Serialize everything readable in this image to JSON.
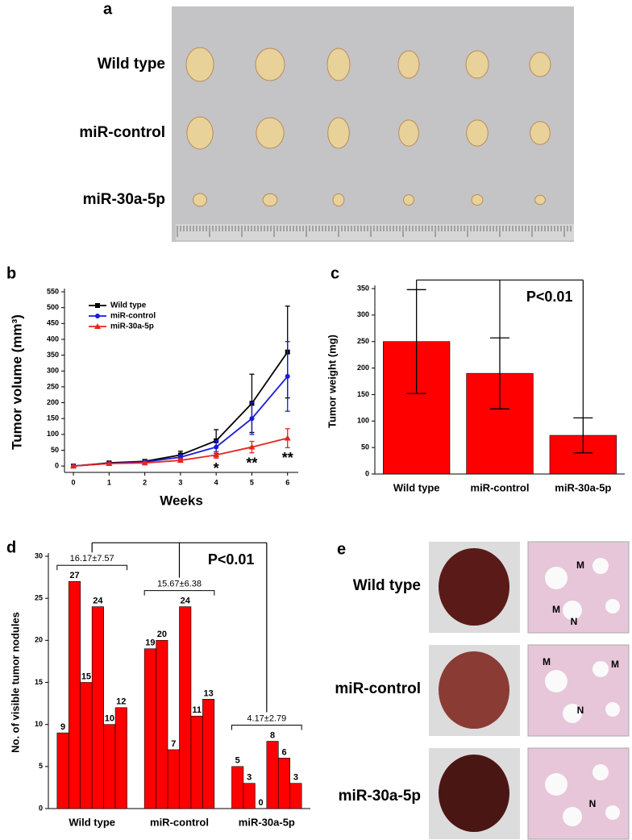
{
  "panel_a": {
    "letter": "a",
    "rows": [
      "Wild type",
      "miR-control",
      "miR-30a-5p"
    ]
  },
  "panel_e": {
    "letter": "e",
    "rows": [
      {
        "label": "Wild type",
        "marks": [
          "M",
          "M",
          "N"
        ]
      },
      {
        "label": "miR-control",
        "marks": [
          "M",
          "M",
          "N"
        ]
      },
      {
        "label": "miR-30a-5p",
        "marks": [
          "N"
        ]
      }
    ]
  },
  "chart_data": [
    {
      "type": "line",
      "letter": "b",
      "x_label": "Weeks",
      "y_label": "Tumor volume (mm³)",
      "x": [
        0,
        1,
        2,
        3,
        4,
        5,
        6
      ],
      "xlim": [
        -0.25,
        6.3
      ],
      "xticks": [
        0,
        1,
        2,
        3,
        4,
        5,
        6
      ],
      "ylim": [
        -20,
        550
      ],
      "yticks": [
        0,
        50,
        100,
        150,
        200,
        250,
        300,
        350,
        400,
        450,
        500,
        550
      ],
      "legend": "upper left",
      "series": [
        {
          "name": "Wild type",
          "color": "#000000",
          "marker": "square",
          "values": [
            0,
            10,
            15,
            35,
            80,
            198,
            360
          ],
          "errors": [
            2,
            3,
            4,
            12,
            35,
            92,
            145
          ]
        },
        {
          "name": "miR-control",
          "color": "#1a1adc",
          "marker": "circle",
          "values": [
            0,
            8,
            13,
            28,
            60,
            150,
            283
          ],
          "errors": [
            2,
            3,
            4,
            8,
            20,
            50,
            110
          ]
        },
        {
          "name": "miR-30a-5p",
          "color": "#e8231e",
          "marker": "triangle",
          "values": [
            0,
            8,
            10,
            18,
            35,
            60,
            88
          ],
          "errors": [
            2,
            2,
            3,
            5,
            10,
            18,
            30
          ]
        }
      ],
      "annotations": [
        {
          "text": "*",
          "x": 4
        },
        {
          "text": "**",
          "x": 5
        },
        {
          "text": "**",
          "x": 6
        }
      ]
    },
    {
      "type": "bar",
      "letter": "c",
      "y_label": "Tumor weight (mg)",
      "color": "#ff0000",
      "categories": [
        "Wild type",
        "miR-control",
        "miR-30a-5p"
      ],
      "values": [
        250,
        190,
        73
      ],
      "errors": [
        98,
        67,
        33
      ],
      "ylim": [
        0,
        350
      ],
      "yticks": [
        0,
        50,
        100,
        150,
        200,
        250,
        300,
        350
      ],
      "annotation": "P<0.01"
    },
    {
      "type": "bar",
      "letter": "d",
      "y_label": "No. of visible tumor nodules",
      "color": "#ff0000",
      "categories": [
        "Wild type",
        "miR-control",
        "miR-30a-5p"
      ],
      "groups": [
        {
          "values": [
            9,
            27,
            15,
            24,
            10,
            12
          ],
          "label": "16.17±7.57"
        },
        {
          "values": [
            19,
            20,
            7,
            24,
            11,
            13
          ],
          "label": "15.67±6.38"
        },
        {
          "values": [
            5,
            3,
            0,
            8,
            6,
            3
          ],
          "label": "4.17±2.79"
        }
      ],
      "ylim": [
        0,
        30
      ],
      "yticks": [
        0,
        5,
        10,
        15,
        20,
        25,
        30
      ],
      "annotation": "P<0.01"
    }
  ]
}
